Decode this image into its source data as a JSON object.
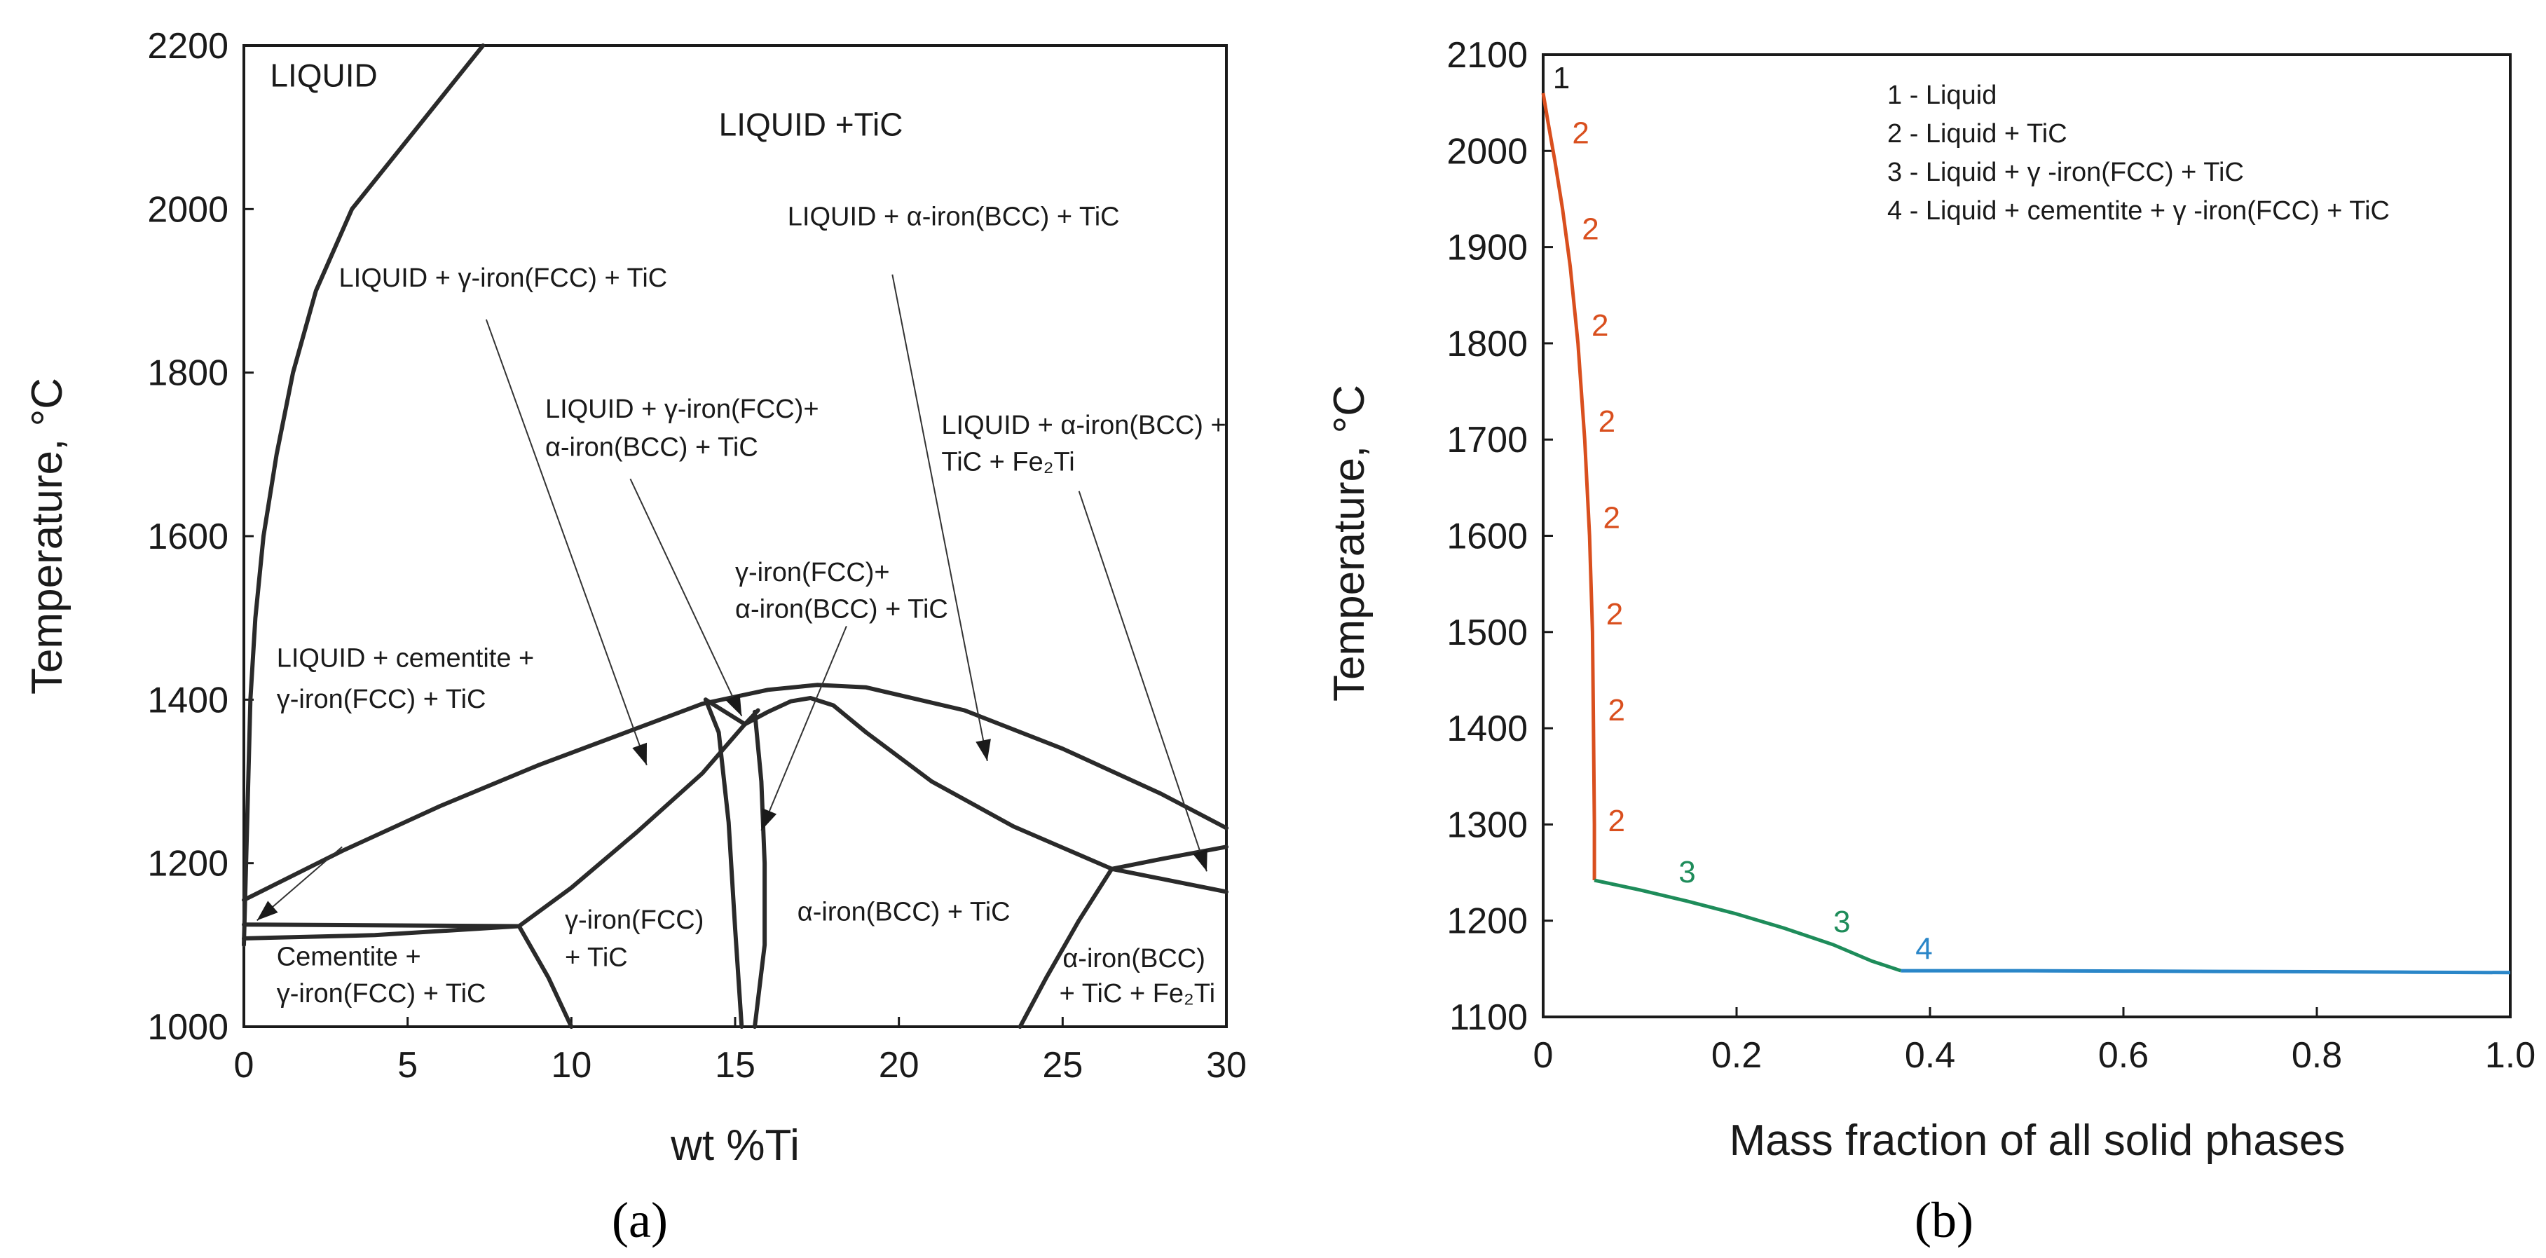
{
  "chart_data": [
    {
      "panel_label": "(a)",
      "type": "line",
      "xlabel": "wt %Ti",
      "ylabel": "Temperature, °C",
      "xlim": [
        0,
        30
      ],
      "ylim": [
        1000,
        2200
      ],
      "xticks": [
        "0",
        "5",
        "10",
        "15",
        "20",
        "25",
        "30"
      ],
      "yticks": [
        "1000",
        "1200",
        "1400",
        "1600",
        "1800",
        "2000",
        "2200"
      ],
      "color": "#2a2a2a",
      "boundaries": [
        {
          "name": "liquidus",
          "points": [
            [
              0,
              1100
            ],
            [
              0.1,
              1250
            ],
            [
              0.2,
              1400
            ],
            [
              0.35,
              1500
            ],
            [
              0.6,
              1600
            ],
            [
              1,
              1700
            ],
            [
              1.5,
              1800
            ],
            [
              2.2,
              1900
            ],
            [
              3.3,
              2000
            ],
            [
              5.3,
              2100
            ],
            [
              7.3,
              2200
            ]
          ]
        },
        {
          "name": "upper-envelope",
          "points": [
            [
              0,
              1155
            ],
            [
              3,
              1215
            ],
            [
              6,
              1270
            ],
            [
              9,
              1320
            ],
            [
              12,
              1365
            ],
            [
              14,
              1395
            ],
            [
              16,
              1412
            ],
            [
              17.5,
              1418
            ],
            [
              19,
              1415
            ],
            [
              22,
              1387
            ],
            [
              25,
              1340
            ],
            [
              28,
              1285
            ],
            [
              30,
              1243
            ]
          ]
        },
        {
          "name": "inner-dome",
          "points": [
            [
              15.3,
              1370
            ],
            [
              16,
              1385
            ],
            [
              16.7,
              1398
            ],
            [
              17.3,
              1402
            ],
            [
              18,
              1393
            ],
            [
              19,
              1360
            ],
            [
              21,
              1300
            ],
            [
              23.5,
              1245
            ],
            [
              26.5,
              1193
            ],
            [
              30,
              1165
            ]
          ]
        },
        {
          "name": "fe2ti-line",
          "points": [
            [
              26.5,
              1193
            ],
            [
              28,
              1205
            ],
            [
              30,
              1220
            ]
          ]
        },
        {
          "name": "fcc-boundary",
          "points": [
            [
              8.4,
              1123
            ],
            [
              10,
              1170
            ],
            [
              12,
              1238
            ],
            [
              14,
              1310
            ],
            [
              15.3,
              1370
            ],
            [
              15.7,
              1387
            ]
          ]
        },
        {
          "name": "gamma-left",
          "points": [
            [
              14.1,
              1400
            ],
            [
              14.5,
              1360
            ],
            [
              14.8,
              1250
            ],
            [
              15,
              1120
            ],
            [
              15.2,
              1000
            ]
          ]
        },
        {
          "name": "gamma-right",
          "points": [
            [
              15.6,
              1385
            ],
            [
              15.8,
              1300
            ],
            [
              15.9,
              1200
            ],
            [
              15.9,
              1100
            ],
            [
              15.6,
              1000
            ]
          ]
        },
        {
          "name": "cross-link",
          "points": [
            [
              14.1,
              1400
            ],
            [
              15.3,
              1370
            ]
          ]
        },
        {
          "name": "eutectic-top",
          "points": [
            [
              0,
              1125
            ],
            [
              8.4,
              1123
            ]
          ]
        },
        {
          "name": "eutectic-bottom",
          "points": [
            [
              0,
              1108
            ],
            [
              4,
              1112
            ],
            [
              8.4,
              1123
            ]
          ]
        },
        {
          "name": "fcc-bottom",
          "points": [
            [
              8.4,
              1123
            ],
            [
              9.3,
              1060
            ],
            [
              10,
              1000
            ]
          ]
        },
        {
          "name": "fe2ti-boundary",
          "points": [
            [
              23.7,
              1000
            ],
            [
              24.5,
              1060
            ],
            [
              25.5,
              1130
            ],
            [
              26.5,
              1193
            ]
          ]
        }
      ],
      "regions": [
        {
          "label": "LIQUID",
          "x": 0.8,
          "y": 2150
        },
        {
          "label": "LIQUID +TiC",
          "x": 14.5,
          "y": 2090
        },
        {
          "label": "LIQUID + α-iron(BCC) + TiC",
          "x": 16.6,
          "y": 1980
        },
        {
          "label": "LIQUID + γ-iron(FCC) + TiC",
          "x": 2.9,
          "y": 1905
        },
        {
          "label": "LIQUID + γ-iron(FCC)+",
          "x": 9.2,
          "y": 1745
        },
        {
          "label": "α-iron(BCC) + TiC",
          "x": 9.2,
          "y": 1698
        },
        {
          "label": "LIQUID + α-iron(BCC) +",
          "x": 21.3,
          "y": 1725
        },
        {
          "label": "TiC + Fe₂Ti",
          "x": 21.3,
          "y": 1680
        },
        {
          "label": "γ-iron(FCC)+",
          "x": 15,
          "y": 1545
        },
        {
          "label": "α-iron(BCC) + TiC",
          "x": 15,
          "y": 1500
        },
        {
          "label": "LIQUID + cementite +",
          "x": 1,
          "y": 1440
        },
        {
          "label": "γ-iron(FCC) + TiC",
          "x": 1,
          "y": 1390
        },
        {
          "label": "γ-iron(FCC)",
          "x": 9.8,
          "y": 1120
        },
        {
          "label": "+ TiC",
          "x": 9.8,
          "y": 1074
        },
        {
          "label": "α-iron(BCC) + TiC",
          "x": 16.9,
          "y": 1130
        },
        {
          "label": "Cementite +",
          "x": 1,
          "y": 1075
        },
        {
          "label": "γ-iron(FCC) + TiC",
          "x": 1,
          "y": 1030
        },
        {
          "label": "α-iron(BCC)",
          "x": 25,
          "y": 1073
        },
        {
          "label": "+ TiC + Fe₂Ti",
          "x": 24.9,
          "y": 1030
        }
      ],
      "pointers": [
        {
          "from": [
            7.4,
            1865
          ],
          "to": [
            12.3,
            1320
          ]
        },
        {
          "from": [
            11.8,
            1670
          ],
          "to": [
            15.2,
            1380
          ]
        },
        {
          "from": [
            18.4,
            1490
          ],
          "to": [
            15.8,
            1240
          ]
        },
        {
          "from": [
            19.8,
            1920
          ],
          "to": [
            22.7,
            1325
          ]
        },
        {
          "from": [
            25.5,
            1655
          ],
          "to": [
            29.4,
            1190
          ]
        },
        {
          "from": [
            3,
            1220
          ],
          "to": [
            0.4,
            1130
          ]
        }
      ]
    },
    {
      "panel_label": "(b)",
      "type": "line",
      "xlabel": "Mass fraction of all solid phases",
      "ylabel": "Temperature, °C",
      "xlim": [
        0,
        1
      ],
      "ylim": [
        1100,
        2100
      ],
      "xticks": [
        "0",
        "0.2",
        "0.4",
        "0.6",
        "0.8",
        "1.0"
      ],
      "yticks": [
        "1100",
        "1200",
        "1300",
        "1400",
        "1500",
        "1600",
        "1700",
        "1800",
        "1900",
        "2000",
        "2100"
      ],
      "legend": [
        "1 - Liquid",
        "2 - Liquid + TiC",
        "3 - Liquid + γ -iron(FCC) + TiC",
        "4 - Liquid + cementite + γ -iron(FCC) + TiC"
      ],
      "series": [
        {
          "name": "Liquid + TiC",
          "label": "2",
          "color": "#d94f1e",
          "x": [
            0,
            0.005,
            0.012,
            0.02,
            0.028,
            0.036,
            0.043,
            0.048,
            0.051,
            0.052,
            0.053,
            0.053
          ],
          "y": [
            2060,
            2030,
            1990,
            1940,
            1880,
            1800,
            1700,
            1600,
            1500,
            1400,
            1300,
            1242
          ]
        },
        {
          "name": "Liquid + γ-iron(FCC) + TiC",
          "label": "3",
          "color": "#1e8c5a",
          "x": [
            0.053,
            0.1,
            0.15,
            0.2,
            0.25,
            0.3,
            0.34,
            0.37
          ],
          "y": [
            1242,
            1232,
            1220,
            1207,
            1192,
            1175,
            1158,
            1148
          ]
        },
        {
          "name": "Liquid + cementite + γ-iron(FCC) + TiC",
          "label": "4",
          "color": "#2a86c8",
          "x": [
            0.37,
            0.5,
            0.6,
            0.7,
            0.8,
            0.9,
            1.0
          ],
          "y": [
            1148,
            1148,
            1147.6,
            1147.3,
            1147,
            1146.5,
            1146
          ]
        }
      ],
      "curve_labels": [
        {
          "text": "1",
          "x": 0.01,
          "y": 2065,
          "color": "#1a1a1a"
        },
        {
          "text": "2",
          "x": 0.03,
          "y": 2008,
          "color": "#d94f1e"
        },
        {
          "text": "2",
          "x": 0.04,
          "y": 1908,
          "color": "#d94f1e"
        },
        {
          "text": "2",
          "x": 0.05,
          "y": 1808,
          "color": "#d94f1e"
        },
        {
          "text": "2",
          "x": 0.057,
          "y": 1708,
          "color": "#d94f1e"
        },
        {
          "text": "2",
          "x": 0.062,
          "y": 1608,
          "color": "#d94f1e"
        },
        {
          "text": "2",
          "x": 0.065,
          "y": 1508,
          "color": "#d94f1e"
        },
        {
          "text": "2",
          "x": 0.067,
          "y": 1408,
          "color": "#d94f1e"
        },
        {
          "text": "2",
          "x": 0.067,
          "y": 1293,
          "color": "#d94f1e"
        },
        {
          "text": "3",
          "x": 0.14,
          "y": 1240,
          "color": "#1e8c5a"
        },
        {
          "text": "3",
          "x": 0.3,
          "y": 1188,
          "color": "#1e8c5a"
        },
        {
          "text": "4",
          "x": 0.385,
          "y": 1160,
          "color": "#2a86c8"
        }
      ]
    }
  ]
}
